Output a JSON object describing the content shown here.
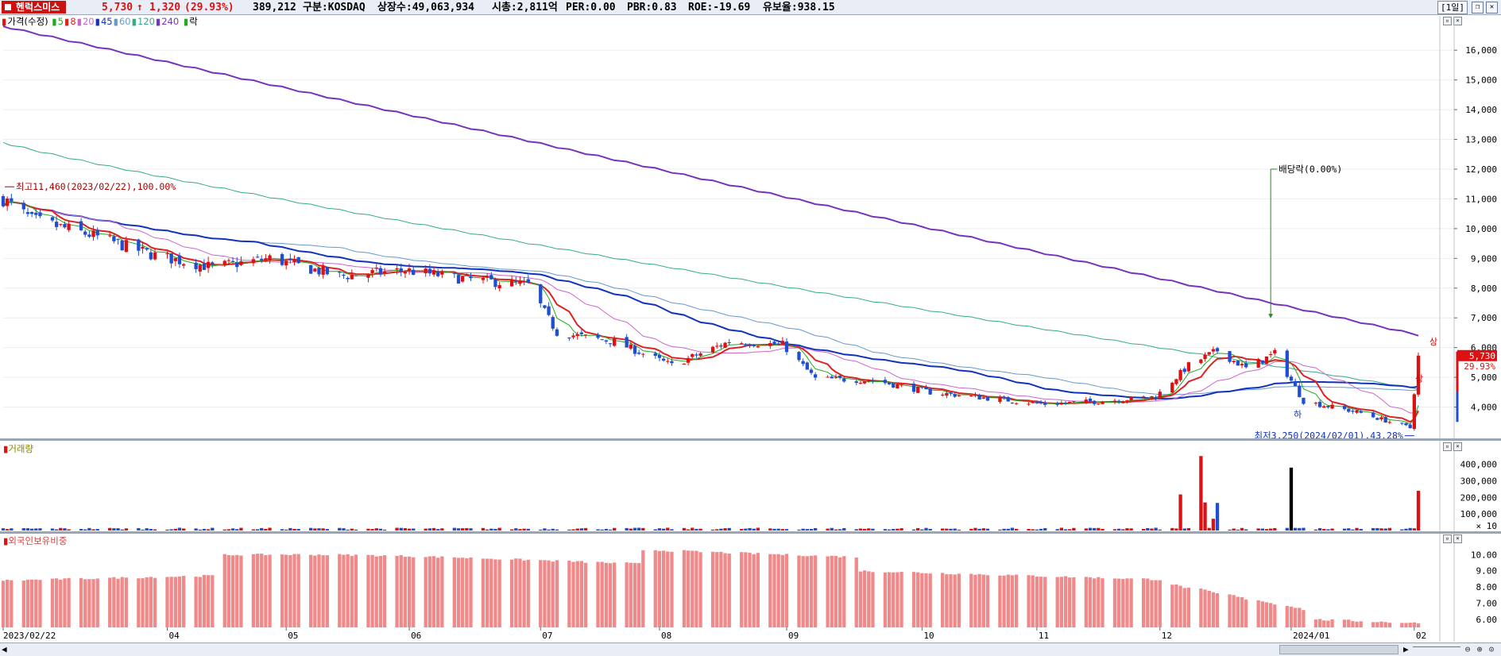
{
  "header": {
    "stock_name": "헨럭스미스",
    "price": "5,730",
    "arrow": "↑",
    "change": "1,320",
    "change_pct": "(29.93%)",
    "volume": "389,212",
    "market": "구분:KOSDAQ",
    "shares": "상장수:49,063,934",
    "market_cap": "시총:2,811억",
    "per": "PER:0.00",
    "pbr": "PBR:0.83",
    "roe": "ROE:-19.69",
    "reserve": "유보율:938.15",
    "period": "[1일]"
  },
  "legend": {
    "price_label": "가격(수정)",
    "ma": [
      {
        "label": "5",
        "color": "#22aa22"
      },
      {
        "label": "8",
        "color": "#dd2222"
      },
      {
        "label": "20",
        "color": "#cc66cc"
      },
      {
        "label": "45",
        "color": "#1133bb"
      },
      {
        "label": "60",
        "color": "#6699cc"
      },
      {
        "label": "120",
        "color": "#33aa88"
      },
      {
        "label": "240",
        "color": "#7733bb"
      }
    ],
    "ex_label": "락"
  },
  "annotations": {
    "high": "최고11,460(2023/02/22),100.00%",
    "low": "최저3,250(2024/02/01),43.28%",
    "dividend": "배당락(0.00%)",
    "upper_limit": "상",
    "lower_limit": "하",
    "last_price": "5,730",
    "last_pct": "29.93%"
  },
  "panels": {
    "volume_title": "거래량",
    "foreign_title": "외국인보유비중",
    "volume_unit": "× 10"
  },
  "axes": {
    "price_ticks": [
      "16,000",
      "15,000",
      "14,000",
      "13,000",
      "12,000",
      "11,000",
      "10,000",
      "9,000",
      "8,000",
      "7,000",
      "6,000",
      "5,000",
      "4,000"
    ],
    "volume_ticks": [
      "400,000",
      "300,000",
      "200,000",
      "100,000"
    ],
    "foreign_ticks": [
      "10.00",
      "9.00",
      "8.00",
      "7.00",
      "6.00"
    ],
    "x_labels": [
      "2023/02/22",
      "04",
      "05",
      "06",
      "07",
      "08",
      "09",
      "10",
      "11",
      "12",
      "2024/01",
      "02"
    ]
  },
  "colors": {
    "up": "#dd1111",
    "down": "#1f4fd0",
    "volume_black": "#000000",
    "foreign_bar": "#f08a8a"
  },
  "chart_data": {
    "type": "candlestick",
    "period": "daily",
    "date_range": [
      "2023/02/22",
      "2024/02/02"
    ],
    "price_axis_range": [
      3500,
      16800
    ],
    "high": {
      "value": 11460,
      "date": "2023/02/22"
    },
    "low": {
      "value": 3250,
      "date": "2024/02/01"
    },
    "last_close": 5730,
    "close_series_approx": [
      [
        "2023/02/22",
        11000
      ],
      [
        "2023/03/01",
        10300
      ],
      [
        "2023/03/15",
        9800
      ],
      [
        "2023/03/31",
        9100
      ],
      [
        "2023/04/14",
        8700
      ],
      [
        "2023/04/28",
        9000
      ],
      [
        "2023/05/15",
        8400
      ],
      [
        "2023/05/31",
        8600
      ],
      [
        "2023/06/15",
        8300
      ],
      [
        "2023/06/30",
        8100
      ],
      [
        "2023/07/07",
        6500
      ],
      [
        "2023/07/21",
        6200
      ],
      [
        "2023/08/04",
        5400
      ],
      [
        "2023/08/18",
        6200
      ],
      [
        "2023/08/31",
        6100
      ],
      [
        "2023/09/08",
        4950
      ],
      [
        "2023/09/22",
        4900
      ],
      [
        "2023/10/06",
        4500
      ],
      [
        "2023/10/20",
        4300
      ],
      [
        "2023/11/03",
        4100
      ],
      [
        "2023/11/17",
        4200
      ],
      [
        "2023/11/30",
        4350
      ],
      [
        "2023/12/08",
        5400
      ],
      [
        "2023/12/15",
        5900
      ],
      [
        "2023/12/22",
        5300
      ],
      [
        "2023/12/29",
        5800
      ],
      [
        "2024/01/05",
        4200
      ],
      [
        "2024/01/19",
        3800
      ],
      [
        "2024/01/31",
        3300
      ],
      [
        "2024/02/02",
        5730
      ]
    ],
    "moving_averages_end_approx": {
      "MA240": 6400,
      "MA120": 4600,
      "MA45": 4600
    },
    "volume_peaks": [
      {
        "date": "2023/12/11",
        "value": 450000
      },
      {
        "date": "2024/01/02",
        "value": 380000
      },
      {
        "date": "2024/02/02",
        "value": 240000
      }
    ],
    "foreign_ownership_range": [
      6.0,
      10.4
    ]
  }
}
